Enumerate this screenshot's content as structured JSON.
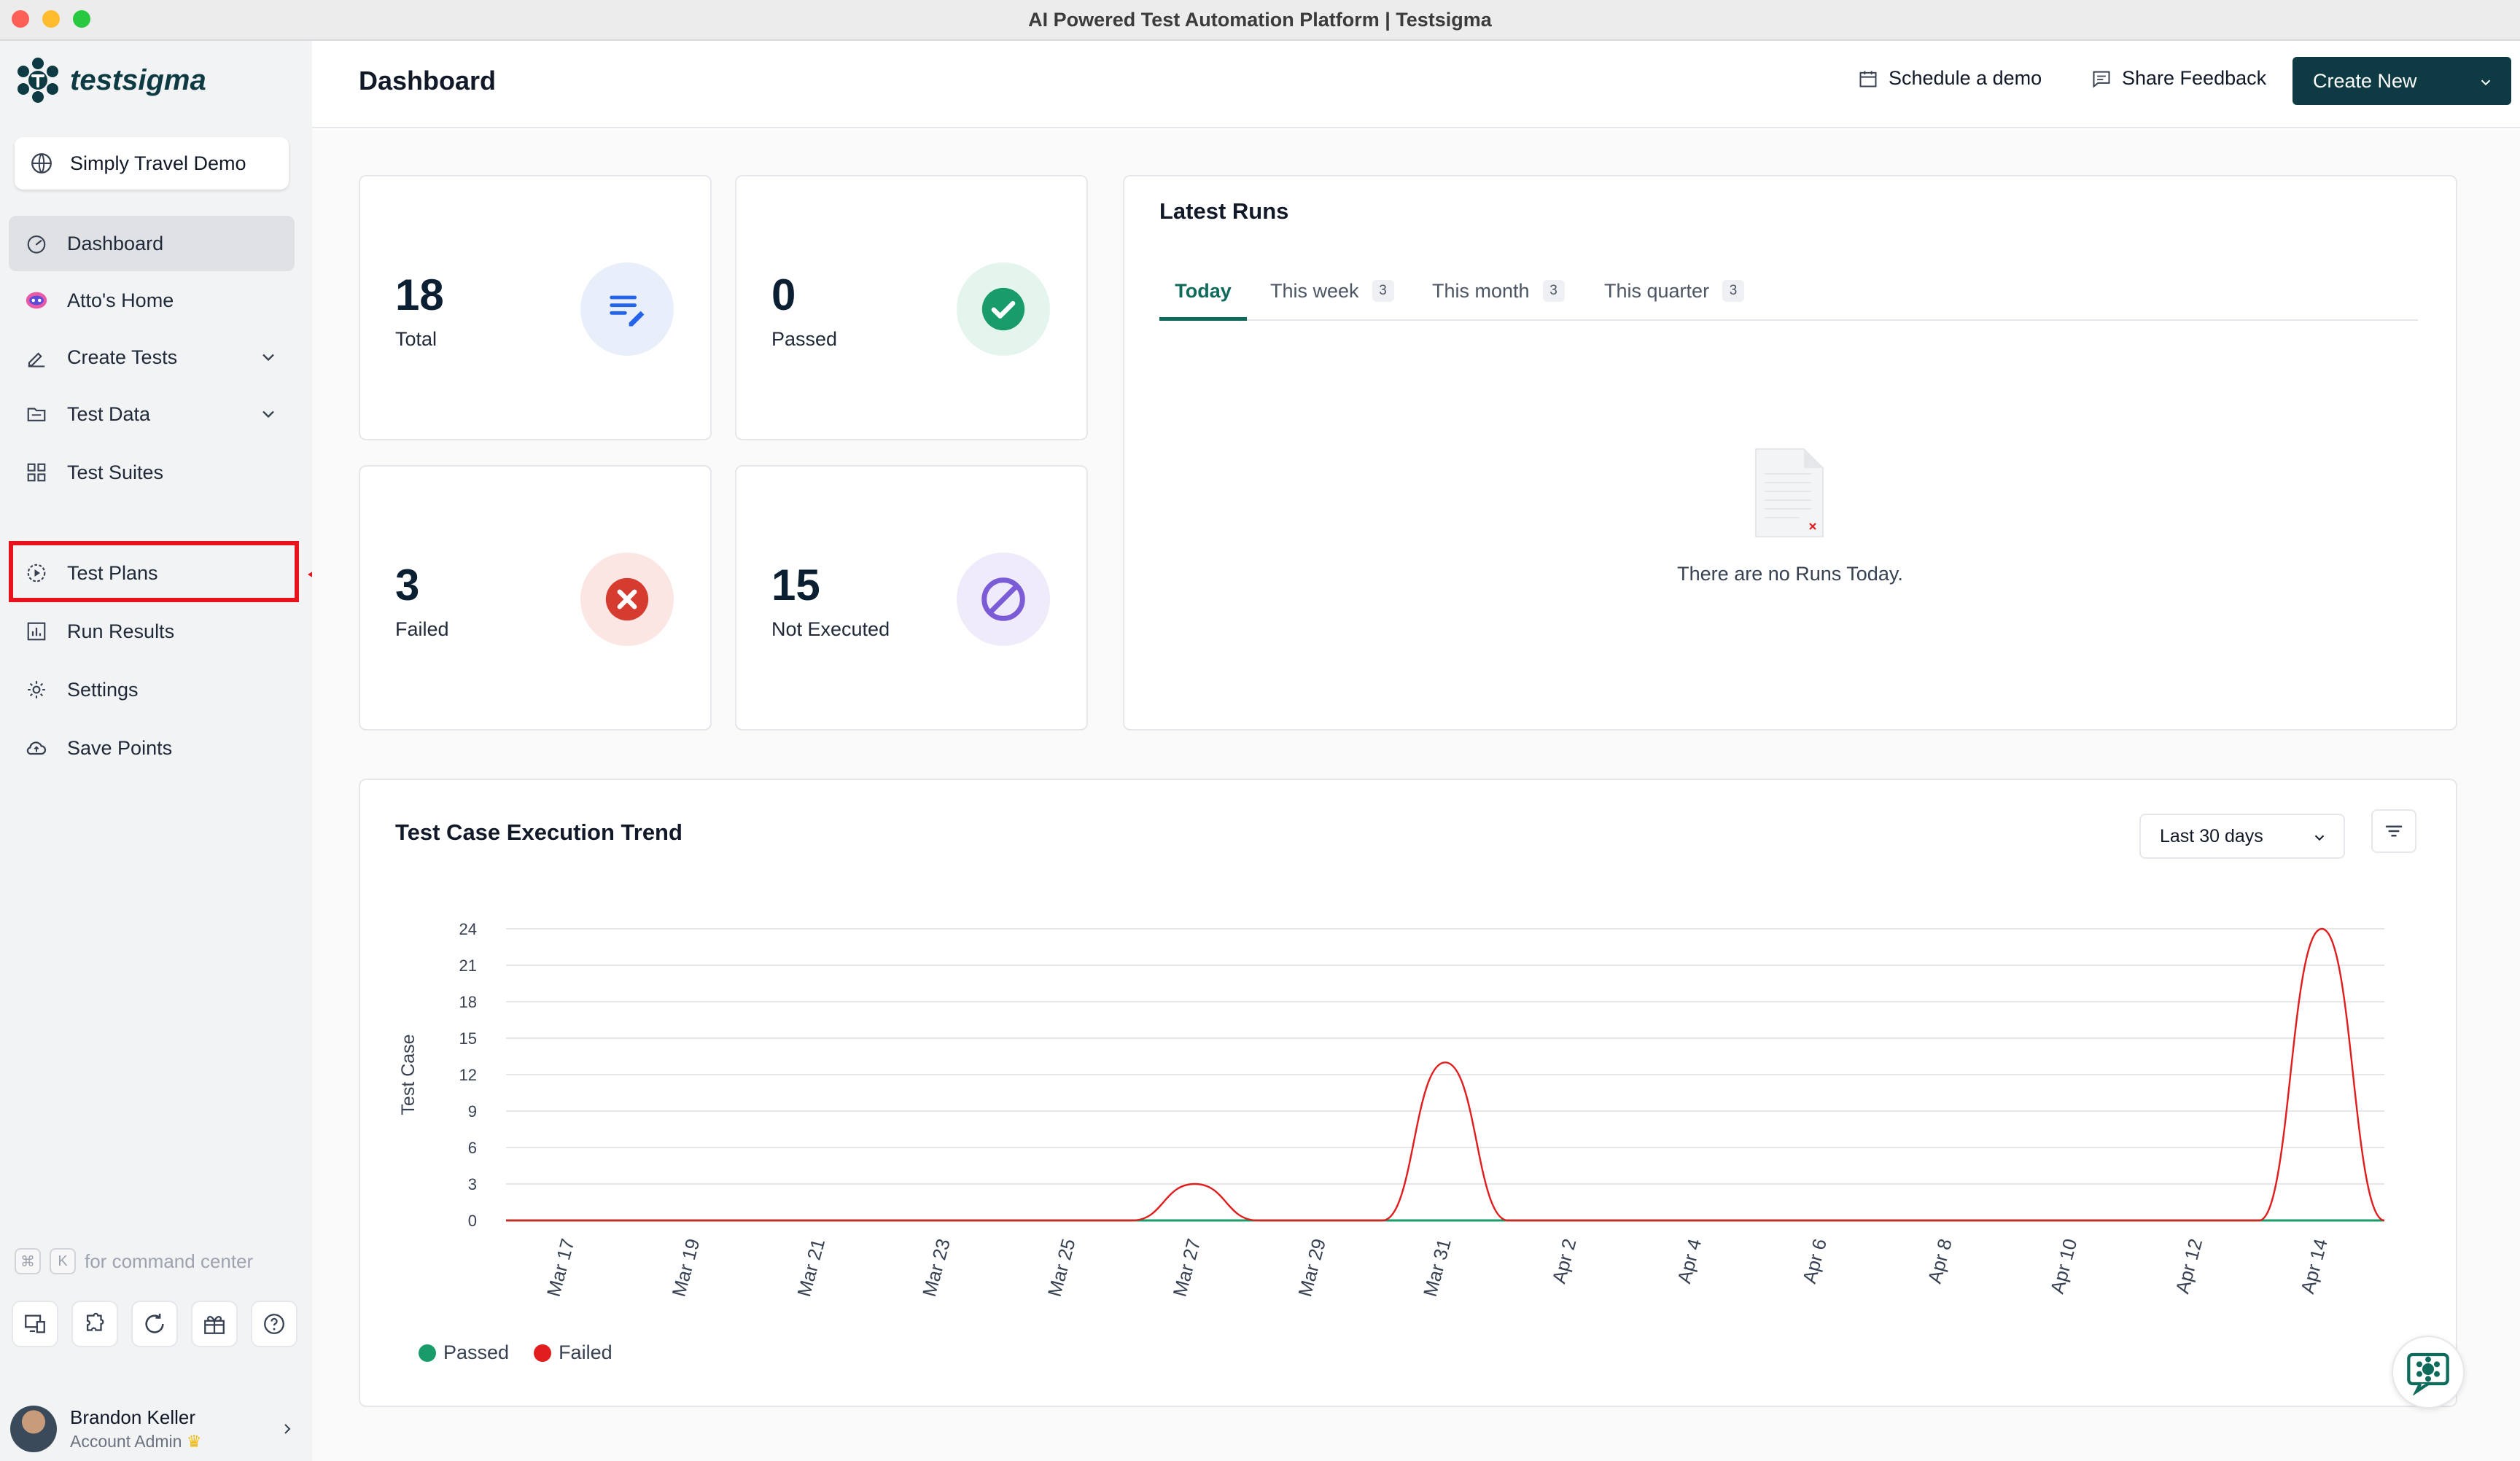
{
  "window": {
    "title": "AI Powered Test Automation Platform | Testsigma"
  },
  "brand": {
    "name": "testsigma",
    "color": "#0e3b43"
  },
  "sidebar": {
    "project": "Simply Travel Demo",
    "items": [
      {
        "label": "Dashboard",
        "icon": "dashboard-gauge-icon",
        "active": true
      },
      {
        "label": "Atto's Home",
        "icon": "atto-bot-icon"
      },
      {
        "label": "Create Tests",
        "icon": "pencil-icon",
        "expandable": true
      },
      {
        "label": "Test Data",
        "icon": "folder-icon",
        "expandable": true
      },
      {
        "label": "Test Suites",
        "icon": "grid-icon"
      },
      {
        "label": "Test Plans",
        "icon": "play-circle-icon",
        "highlighted": true
      },
      {
        "label": "Run Results",
        "icon": "bar-chart-icon"
      },
      {
        "label": "Settings",
        "icon": "gear-icon"
      },
      {
        "label": "Save Points",
        "icon": "cloud-icon"
      }
    ],
    "command_hint": {
      "key1": "⌘",
      "key2": "K",
      "text": "for command center"
    },
    "user": {
      "name": "Brandon Keller",
      "role": "Account Admin"
    }
  },
  "header": {
    "title": "Dashboard",
    "schedule_demo": "Schedule a demo",
    "share_feedback": "Share Feedback",
    "create_new": "Create New"
  },
  "stats": [
    {
      "value": "18",
      "label": "Total",
      "icon": "list-edit-icon",
      "color": "#2563eb"
    },
    {
      "value": "0",
      "label": "Passed",
      "icon": "check-circle-icon",
      "color": "#1a9c6a"
    },
    {
      "value": "3",
      "label": "Failed",
      "icon": "x-circle-icon",
      "color": "#d63b2f"
    },
    {
      "value": "15",
      "label": "Not Executed",
      "icon": "ban-icon",
      "color": "#7c5cd6"
    }
  ],
  "latest_runs": {
    "title": "Latest Runs",
    "tabs": [
      {
        "label": "Today",
        "active": true
      },
      {
        "label": "This week",
        "count": "3"
      },
      {
        "label": "This month",
        "count": "3"
      },
      {
        "label": "This quarter",
        "count": "3"
      }
    ],
    "empty_text": "There are no Runs Today."
  },
  "trend": {
    "title": "Test Case Execution Trend",
    "range": "Last 30 days"
  },
  "chart_data": {
    "type": "line",
    "ylabel": "Test Case",
    "ylim": [
      0,
      24
    ],
    "yticks": [
      0,
      3,
      6,
      9,
      12,
      15,
      18,
      21,
      24
    ],
    "x": [
      "Mar 16",
      "Mar 17",
      "Mar 18",
      "Mar 19",
      "Mar 20",
      "Mar 21",
      "Mar 22",
      "Mar 23",
      "Mar 24",
      "Mar 25",
      "Mar 26",
      "Mar 27",
      "Mar 28",
      "Mar 29",
      "Mar 30",
      "Mar 31",
      "Apr 1",
      "Apr 2",
      "Apr 3",
      "Apr 4",
      "Apr 5",
      "Apr 6",
      "Apr 7",
      "Apr 8",
      "Apr 9",
      "Apr 10",
      "Apr 11",
      "Apr 12",
      "Apr 13",
      "Apr 14",
      "Apr 15"
    ],
    "xtick_labels": [
      "Mar 17",
      "Mar 19",
      "Mar 21",
      "Mar 23",
      "Mar 25",
      "Mar 27",
      "Mar 29",
      "Mar 31",
      "Apr 2",
      "Apr 4",
      "Apr 6",
      "Apr 8",
      "Apr 10",
      "Apr 12",
      "Apr 14"
    ],
    "series": [
      {
        "name": "Passed",
        "color": "#1a9c6a",
        "values": [
          0,
          0,
          0,
          0,
          0,
          0,
          0,
          0,
          0,
          0,
          0,
          0,
          0,
          0,
          0,
          0,
          0,
          0,
          0,
          0,
          0,
          0,
          0,
          0,
          0,
          0,
          0,
          0,
          0,
          0,
          0
        ]
      },
      {
        "name": "Failed",
        "color": "#e11d1d",
        "values": [
          0,
          0,
          0,
          0,
          0,
          0,
          0,
          0,
          0,
          0,
          0,
          3,
          0,
          0,
          0,
          13,
          0,
          0,
          0,
          0,
          0,
          0,
          0,
          0,
          0,
          0,
          0,
          0,
          0,
          24,
          0
        ]
      }
    ],
    "legend": "bottom-left",
    "grid": true
  }
}
